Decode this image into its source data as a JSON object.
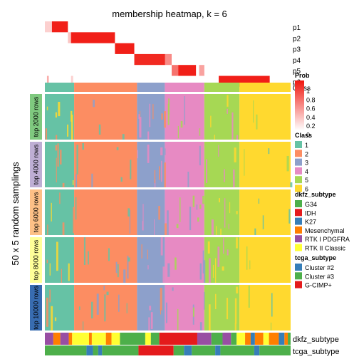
{
  "chart_data": {
    "type": "heatmap",
    "title": "membership heatmap, k = 6",
    "ylabel": "50 x 5 random samplings",
    "prob_rows": [
      {
        "name": "p1",
        "blocks": [
          [
            0,
            0.27,
            0.2
          ],
          [
            0.27,
            0.88,
            0.96
          ]
        ]
      },
      {
        "name": "p2",
        "blocks": [
          [
            0.88,
            1.0,
            0.25
          ],
          [
            1.0,
            2.68,
            0.96
          ]
        ]
      },
      {
        "name": "p3",
        "blocks": [
          [
            2.68,
            3.42,
            0.96
          ]
        ]
      },
      {
        "name": "p4",
        "blocks": [
          [
            3.42,
            4.6,
            0.92
          ],
          [
            4.6,
            4.85,
            0.5
          ]
        ]
      },
      {
        "name": "p5",
        "blocks": [
          [
            4.85,
            5.1,
            0.6
          ],
          [
            5.1,
            5.78,
            0.96
          ],
          [
            5.9,
            6.1,
            0.4
          ]
        ]
      },
      {
        "name": "p6",
        "blocks": [
          [
            0.08,
            0.15,
            0.35
          ],
          [
            1.0,
            1.08,
            0.2
          ],
          [
            6.65,
            8.6,
            0.96
          ]
        ]
      }
    ],
    "class_row": {
      "name": "Class",
      "segments": [
        [
          1,
          1.0
        ],
        [
          2,
          2.15
        ],
        [
          3,
          0.95
        ],
        [
          4,
          1.35
        ],
        [
          5,
          1.2
        ],
        [
          6,
          1.75
        ]
      ]
    },
    "sampling_groups": [
      {
        "label": "top 2000 rows",
        "color": "#7fc97f"
      },
      {
        "label": "top 4000 rows",
        "color": "#beaed4"
      },
      {
        "label": "top 6000 rows",
        "color": "#fdc086"
      },
      {
        "label": "top 8000 rows",
        "color": "#ffff99"
      },
      {
        "label": "top 10000 rows",
        "color": "#386cb0"
      }
    ],
    "prob_legend": {
      "title": "Prob",
      "ticks": [
        "1",
        "0.8",
        "0.6",
        "0.4",
        "0.2",
        "0"
      ]
    },
    "class_legend": {
      "title": "Class",
      "entries": [
        {
          "label": "1",
          "color": "#66c2a5"
        },
        {
          "label": "2",
          "color": "#fc8d62"
        },
        {
          "label": "3",
          "color": "#8da0cb"
        },
        {
          "label": "4",
          "color": "#e78ac3"
        },
        {
          "label": "5",
          "color": "#a6d854"
        },
        {
          "label": "6",
          "color": "#ffd92f"
        }
      ]
    },
    "dkfz_legend": {
      "title": "dkfz_subtype",
      "entries": [
        {
          "label": "G34",
          "color": "#4daf4a"
        },
        {
          "label": "IDH",
          "color": "#e41a1c"
        },
        {
          "label": "K27",
          "color": "#377eb8"
        },
        {
          "label": "Mesenchymal",
          "color": "#ff7f00"
        },
        {
          "label": "RTK I PDGFRA",
          "color": "#984ea3"
        },
        {
          "label": "RTK II Classic",
          "color": "#ffff33"
        }
      ]
    },
    "tcga_legend": {
      "title": "tcga_subtype",
      "entries": [
        {
          "label": "Cluster #2",
          "color": "#377eb8"
        },
        {
          "label": "Cluster #3",
          "color": "#4daf4a"
        },
        {
          "label": "G-CIMP+",
          "color": "#e41a1c"
        }
      ]
    },
    "annotation_rows": {
      "dkfz": "dkfz_subtype",
      "tcga": "tcga_subtype"
    }
  }
}
